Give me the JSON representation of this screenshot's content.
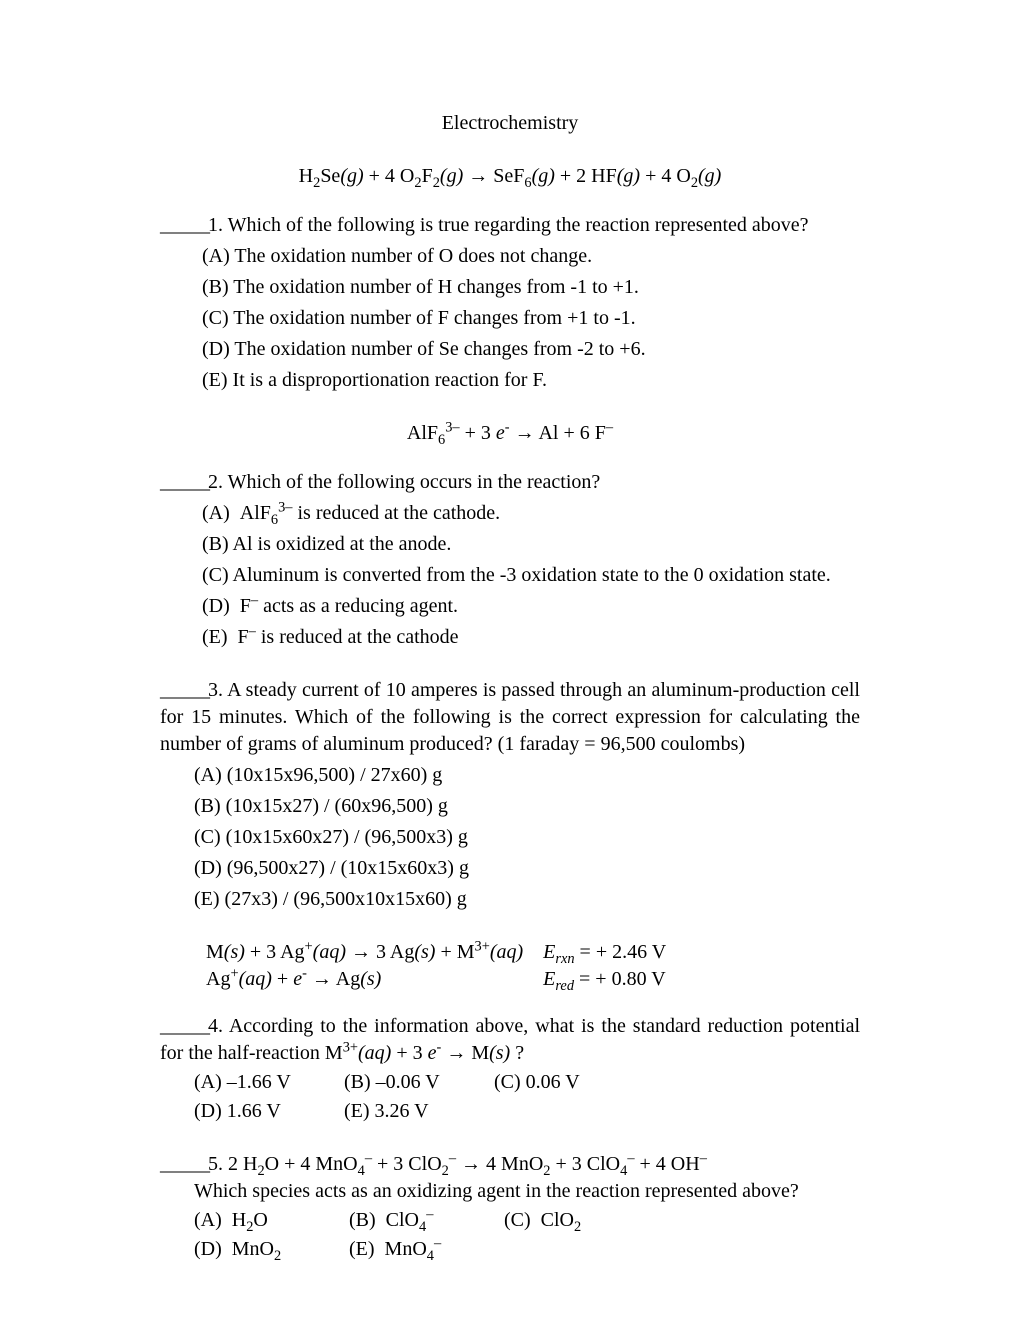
{
  "title": "Electrochemistry",
  "eq1": "H₂Se(g) + 4 O₂F₂(g) → SeF₆(g) + 2 HF(g) + 4 O₂(g)",
  "q1": {
    "stem": "1. Which of the following is true regarding the reaction represented above?",
    "A": "(A)  The oxidation number of O does not change.",
    "B": "(B)  The oxidation number of H changes from -1 to +1.",
    "C": "(C)  The oxidation number of F changes from +1 to -1.",
    "D": "(D)  The oxidation number of Se changes from -2 to +6.",
    "E": "(E)  It is a disproportionation reaction for F."
  },
  "eq2": "AlF₆³⁻ + 3 e⁻ → Al + 6 F⁻",
  "q2": {
    "stem": "2. Which of the following occurs in the reaction?",
    "A": "(A)  AlF₆³⁻ is reduced at the cathode.",
    "B": "(B)  Al is oxidized at the anode.",
    "C": "(C)  Aluminum is converted from the -3 oxidation state to the 0 oxidation state.",
    "D": "(D)  F⁻ acts as a reducing agent.",
    "E": "(E)  F⁻ is reduced at the cathode"
  },
  "q3": {
    "stem": "3. A steady current of 10 amperes is passed through an aluminum-production cell for 15 minutes. Which of the following is the correct expression for calculating the number of grams of aluminum produced? (1 faraday = 96,500 coulombs)",
    "A": "(A) (10x15x96,500) / 27x60) g",
    "B": "(B)  (10x15x27) / (60x96,500) g",
    "C": "(C)  (10x15x60x27) / (96,500x3) g",
    "D": "(D)  (96,500x27) / (10x15x60x3) g",
    "E": "(E)  (27x3) / (96,500x10x15x60) g"
  },
  "q4": {
    "rowA_left": "M(s) + 3 Ag⁺(aq) → 3 Ag(s) + M³⁺(aq)",
    "rowA_right": "Erxn = + 2.46 V",
    "rowB_left": "Ag⁺(aq) + e⁻ → Ag(s)",
    "rowB_right": "Ered = + 0.80 V",
    "stem": "4. According to the information above, what is the standard reduction potential for the half-reaction M³⁺(aq) + 3 e⁻ → M(s) ?",
    "A": "(A)  –1.66 V",
    "B": "(B)  –0.06 V",
    "C": "(C)  0.06 V",
    "D": "(D)  1.66 V",
    "E": "(E)  3.26 V"
  },
  "q5": {
    "eq": "5. 2 H₂O + 4 MnO₄⁻ + 3 ClO₂⁻ → 4 MnO₂ + 3 ClO₄⁻ + 4 OH⁻",
    "stem": "Which species acts as an oxidizing agent in the reaction represented above?",
    "A": "(A)  H₂O",
    "B": "(B)  ClO₄⁻",
    "C": "(C)  ClO₂",
    "D": "(D)  MnO₂",
    "E": "(E)  MnO₄⁻"
  }
}
